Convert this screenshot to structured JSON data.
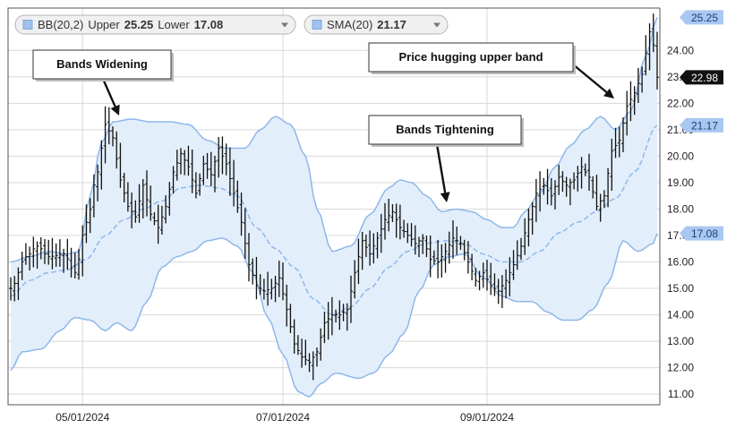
{
  "legend": [
    {
      "name": "BB(20,2)",
      "parts": [
        {
          "label": "Upper",
          "value": "25.25"
        },
        {
          "label": "Lower",
          "value": "17.08"
        }
      ],
      "swatch": "#9fc2ee"
    },
    {
      "name": "SMA(20)",
      "parts": [
        {
          "label": "",
          "value": "21.17"
        }
      ],
      "swatch": "#9fc2ee"
    }
  ],
  "colors": {
    "band_fill": "#e3eefb",
    "band_line": "#8db8ea",
    "sma_line": "#8db8ea",
    "bar": "#111111",
    "grid": "#d8d8d8",
    "frame": "#555555",
    "tag_blue": "#a9c8f1",
    "tag_black": "#111111"
  },
  "annotations": [
    {
      "text": "Bands Widening"
    },
    {
      "text": "Bands Tightening"
    },
    {
      "text": "Price hugging upper band"
    }
  ],
  "value_tags": [
    {
      "name": "upper-band",
      "value": "25.25",
      "style": "blue"
    },
    {
      "name": "last-price",
      "value": "22.98",
      "style": "black"
    },
    {
      "name": "sma",
      "value": "21.17",
      "style": "blue"
    },
    {
      "name": "lower-band",
      "value": "17.08",
      "style": "blue"
    }
  ],
  "chart_data": {
    "type": "ohlc",
    "ylim": [
      10.6,
      25.6
    ],
    "yticks": [
      "24.00",
      "23.00",
      "22.00",
      "21.00",
      "20.00",
      "19.00",
      "18.00",
      "17.00",
      "16.00",
      "15.00",
      "14.00",
      "13.00",
      "12.00",
      "11.00"
    ],
    "xticks": [
      {
        "label": "05/01/2024",
        "index": 19
      },
      {
        "label": "07/01/2024",
        "index": 72
      },
      {
        "label": "09/01/2024",
        "index": 126
      }
    ],
    "bars_count": 172,
    "close_anchors": [
      [
        0,
        15.0
      ],
      [
        4,
        16.2
      ],
      [
        7,
        16.6
      ],
      [
        10,
        16.2
      ],
      [
        14,
        16.3
      ],
      [
        17,
        15.6
      ],
      [
        20,
        17.5
      ],
      [
        23,
        19.4
      ],
      [
        25,
        21.2
      ],
      [
        27,
        20.7
      ],
      [
        29,
        19.1
      ],
      [
        31,
        18.1
      ],
      [
        33,
        17.7
      ],
      [
        35,
        18.9
      ],
      [
        37,
        17.8
      ],
      [
        39,
        17.3
      ],
      [
        41,
        18.1
      ],
      [
        43,
        19.4
      ],
      [
        45,
        20.1
      ],
      [
        47,
        19.6
      ],
      [
        49,
        18.6
      ],
      [
        51,
        19.7
      ],
      [
        53,
        19.3
      ],
      [
        55,
        20.3
      ],
      [
        57,
        19.7
      ],
      [
        59,
        18.6
      ],
      [
        61,
        17.5
      ],
      [
        63,
        15.9
      ],
      [
        65,
        15.1
      ],
      [
        67,
        14.9
      ],
      [
        69,
        15.0
      ],
      [
        71,
        15.4
      ],
      [
        73,
        14.2
      ],
      [
        75,
        12.9
      ],
      [
        77,
        12.4
      ],
      [
        79,
        12.2
      ],
      [
        81,
        12.6
      ],
      [
        83,
        13.7
      ],
      [
        85,
        14.0
      ],
      [
        87,
        14.0
      ],
      [
        89,
        14.2
      ],
      [
        91,
        15.6
      ],
      [
        93,
        16.8
      ],
      [
        95,
        16.3
      ],
      [
        97,
        16.9
      ],
      [
        99,
        17.6
      ],
      [
        101,
        17.9
      ],
      [
        103,
        17.3
      ],
      [
        105,
        17.0
      ],
      [
        107,
        16.7
      ],
      [
        109,
        16.9
      ],
      [
        111,
        16.1
      ],
      [
        113,
        16.0
      ],
      [
        115,
        16.4
      ],
      [
        117,
        16.9
      ],
      [
        119,
        16.7
      ],
      [
        121,
        16.0
      ],
      [
        123,
        15.3
      ],
      [
        125,
        15.6
      ],
      [
        127,
        15.1
      ],
      [
        129,
        14.9
      ],
      [
        131,
        15.3
      ],
      [
        133,
        15.9
      ],
      [
        135,
        16.6
      ],
      [
        137,
        17.6
      ],
      [
        139,
        18.6
      ],
      [
        141,
        18.9
      ],
      [
        143,
        18.5
      ],
      [
        145,
        19.2
      ],
      [
        147,
        18.9
      ],
      [
        149,
        19.1
      ],
      [
        151,
        19.6
      ],
      [
        153,
        19.2
      ],
      [
        155,
        18.1
      ],
      [
        157,
        18.5
      ],
      [
        159,
        20.2
      ],
      [
        161,
        20.6
      ],
      [
        163,
        21.9
      ],
      [
        165,
        22.4
      ],
      [
        167,
        23.1
      ],
      [
        169,
        24.7
      ],
      [
        170,
        24.2
      ],
      [
        171,
        22.98
      ]
    ],
    "upper_anchors": [
      [
        0,
        16.0
      ],
      [
        5,
        16.2
      ],
      [
        10,
        16.4
      ],
      [
        15,
        16.3
      ],
      [
        18,
        16.4
      ],
      [
        21,
        18.5
      ],
      [
        24,
        20.5
      ],
      [
        27,
        21.3
      ],
      [
        32,
        21.4
      ],
      [
        37,
        21.3
      ],
      [
        42,
        21.3
      ],
      [
        47,
        21.2
      ],
      [
        52,
        20.6
      ],
      [
        57,
        20.3
      ],
      [
        62,
        20.3
      ],
      [
        66,
        21.0
      ],
      [
        70,
        21.5
      ],
      [
        74,
        21.2
      ],
      [
        78,
        20.0
      ],
      [
        81,
        18.0
      ],
      [
        85,
        16.4
      ],
      [
        90,
        16.6
      ],
      [
        95,
        17.8
      ],
      [
        100,
        18.8
      ],
      [
        103,
        19.1
      ],
      [
        106,
        19.0
      ],
      [
        110,
        18.5
      ],
      [
        114,
        17.9
      ],
      [
        118,
        18.0
      ],
      [
        122,
        17.9
      ],
      [
        126,
        17.6
      ],
      [
        130,
        17.3
      ],
      [
        133,
        17.3
      ],
      [
        136,
        17.9
      ],
      [
        140,
        18.6
      ],
      [
        144,
        19.6
      ],
      [
        148,
        20.4
      ],
      [
        152,
        21.0
      ],
      [
        156,
        21.5
      ],
      [
        160,
        21.0
      ],
      [
        164,
        21.7
      ],
      [
        168,
        23.8
      ],
      [
        171,
        25.25
      ]
    ],
    "sma_anchors": [
      [
        0,
        14.7
      ],
      [
        5,
        15.3
      ],
      [
        10,
        15.6
      ],
      [
        15,
        15.7
      ],
      [
        20,
        16.1
      ],
      [
        25,
        17.0
      ],
      [
        30,
        17.6
      ],
      [
        35,
        18.0
      ],
      [
        40,
        18.3
      ],
      [
        45,
        18.8
      ],
      [
        50,
        18.9
      ],
      [
        55,
        18.8
      ],
      [
        60,
        18.5
      ],
      [
        65,
        17.3
      ],
      [
        70,
        16.5
      ],
      [
        75,
        15.8
      ],
      [
        80,
        14.6
      ],
      [
        85,
        14.0
      ],
      [
        90,
        14.3
      ],
      [
        95,
        15.0
      ],
      [
        100,
        15.8
      ],
      [
        105,
        16.4
      ],
      [
        110,
        16.7
      ],
      [
        115,
        16.8
      ],
      [
        120,
        16.7
      ],
      [
        125,
        16.3
      ],
      [
        130,
        16.0
      ],
      [
        135,
        16.0
      ],
      [
        140,
        16.4
      ],
      [
        145,
        17.1
      ],
      [
        150,
        17.5
      ],
      [
        155,
        17.9
      ],
      [
        160,
        18.4
      ],
      [
        165,
        19.4
      ],
      [
        171,
        21.17
      ]
    ],
    "lower_anchors": [
      [
        0,
        11.9
      ],
      [
        3,
        12.6
      ],
      [
        8,
        12.7
      ],
      [
        13,
        13.4
      ],
      [
        17,
        13.9
      ],
      [
        21,
        13.8
      ],
      [
        25,
        13.4
      ],
      [
        28,
        13.7
      ],
      [
        32,
        13.4
      ],
      [
        36,
        14.5
      ],
      [
        40,
        15.8
      ],
      [
        44,
        16.2
      ],
      [
        48,
        16.4
      ],
      [
        52,
        16.8
      ],
      [
        56,
        16.9
      ],
      [
        60,
        16.6
      ],
      [
        64,
        15.6
      ],
      [
        68,
        13.9
      ],
      [
        72,
        12.5
      ],
      [
        76,
        11.1
      ],
      [
        79,
        10.9
      ],
      [
        82,
        11.4
      ],
      [
        86,
        11.8
      ],
      [
        92,
        11.6
      ],
      [
        96,
        11.8
      ],
      [
        100,
        12.5
      ],
      [
        104,
        13.3
      ],
      [
        108,
        14.9
      ],
      [
        112,
        15.9
      ],
      [
        116,
        16.2
      ],
      [
        120,
        16.3
      ],
      [
        125,
        15.4
      ],
      [
        130,
        14.7
      ],
      [
        134,
        14.5
      ],
      [
        138,
        14.5
      ],
      [
        142,
        14.1
      ],
      [
        146,
        13.8
      ],
      [
        150,
        13.8
      ],
      [
        154,
        14.2
      ],
      [
        158,
        15.2
      ],
      [
        162,
        16.8
      ],
      [
        166,
        16.4
      ],
      [
        170,
        16.7
      ],
      [
        171,
        17.08
      ]
    ]
  }
}
